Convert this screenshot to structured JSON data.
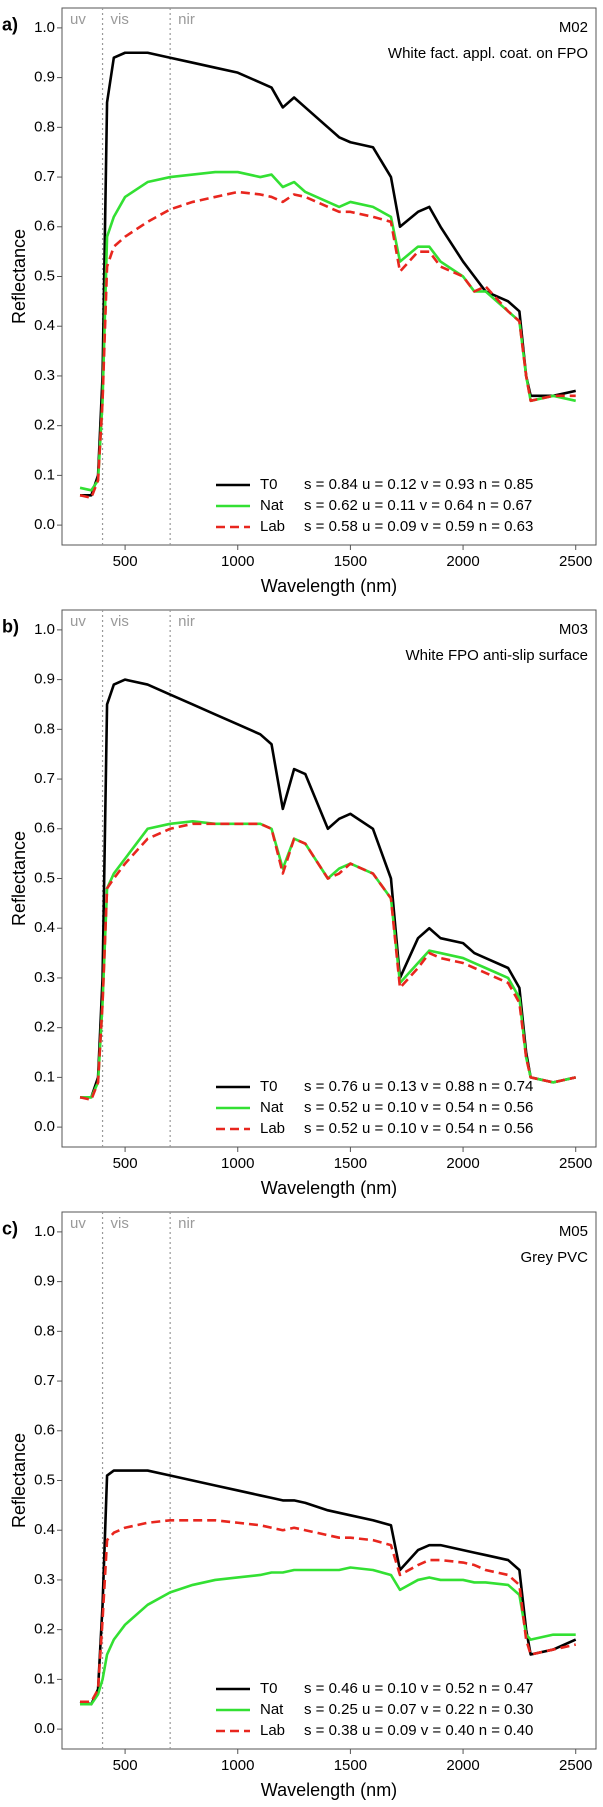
{
  "chart_data": [
    {
      "type": "line",
      "panel": "a)",
      "title": "M02",
      "subtitle": "White fact. appl. coat. on FPO",
      "xlabel": "Wavelength (nm)",
      "ylabel": "Reflectance",
      "region_labels": [
        "uv",
        "vis",
        "nir"
      ],
      "region_bounds": [
        400,
        700
      ],
      "xlim": [
        220,
        2590
      ],
      "ylim": [
        -0.04,
        1.04
      ],
      "xticks": [
        500,
        1000,
        1500,
        2000,
        2500
      ],
      "yticks": [
        {
          "value": 0,
          "label": "0.0"
        },
        0.1,
        0.2,
        0.3,
        0.4,
        0.5,
        0.6,
        0.7,
        0.8,
        0.9,
        {
          "value": 1,
          "label": "1.0"
        }
      ],
      "legend": "lower right",
      "x": [
        300,
        350,
        380,
        400,
        420,
        450,
        500,
        600,
        700,
        800,
        900,
        1000,
        1100,
        1150,
        1200,
        1250,
        1300,
        1400,
        1450,
        1500,
        1600,
        1680,
        1720,
        1800,
        1850,
        1900,
        2000,
        2050,
        2100,
        2200,
        2250,
        2280,
        2300,
        2400,
        2500
      ],
      "series": [
        {
          "name": "T0",
          "stats": "s = 0.84 u = 0.12 v = 0.93 n = 0.85",
          "color": "#000000",
          "linestyle": "solid",
          "values": [
            0.06,
            0.06,
            0.1,
            0.3,
            0.85,
            0.94,
            0.95,
            0.95,
            0.94,
            0.93,
            0.92,
            0.91,
            0.89,
            0.88,
            0.84,
            0.86,
            0.84,
            0.8,
            0.78,
            0.77,
            0.76,
            0.7,
            0.6,
            0.63,
            0.64,
            0.6,
            0.53,
            0.5,
            0.47,
            0.45,
            0.43,
            0.3,
            0.26,
            0.26,
            0.27
          ]
        },
        {
          "name": "Nat",
          "stats": "s = 0.62 u = 0.11 v = 0.64 n = 0.67",
          "color": "#33e033",
          "linestyle": "solid",
          "values": [
            0.075,
            0.07,
            0.09,
            0.25,
            0.58,
            0.62,
            0.66,
            0.69,
            0.7,
            0.705,
            0.71,
            0.71,
            0.7,
            0.705,
            0.68,
            0.69,
            0.67,
            0.65,
            0.64,
            0.65,
            0.64,
            0.62,
            0.53,
            0.56,
            0.56,
            0.53,
            0.5,
            0.47,
            0.47,
            0.43,
            0.41,
            0.3,
            0.25,
            0.26,
            0.25
          ]
        },
        {
          "name": "Lab",
          "stats": "s = 0.58 u = 0.09 v = 0.59 n = 0.63",
          "color": "#e8261e",
          "linestyle": "dashed",
          "values": [
            0.06,
            0.055,
            0.09,
            0.25,
            0.52,
            0.56,
            0.58,
            0.61,
            0.635,
            0.65,
            0.66,
            0.67,
            0.665,
            0.66,
            0.65,
            0.665,
            0.66,
            0.64,
            0.63,
            0.63,
            0.62,
            0.61,
            0.51,
            0.55,
            0.55,
            0.52,
            0.5,
            0.47,
            0.48,
            0.43,
            0.41,
            0.3,
            0.25,
            0.26,
            0.26
          ]
        }
      ]
    },
    {
      "type": "line",
      "panel": "b)",
      "title": "M03",
      "subtitle": "White FPO anti-slip surface",
      "xlabel": "Wavelength (nm)",
      "ylabel": "Reflectance",
      "region_labels": [
        "uv",
        "vis",
        "nir"
      ],
      "region_bounds": [
        400,
        700
      ],
      "xlim": [
        220,
        2590
      ],
      "ylim": [
        -0.04,
        1.04
      ],
      "xticks": [
        500,
        1000,
        1500,
        2000,
        2500
      ],
      "yticks": [
        {
          "value": 0,
          "label": "0.0"
        },
        0.1,
        0.2,
        0.3,
        0.4,
        0.5,
        0.6,
        0.7,
        0.8,
        0.9,
        {
          "value": 1,
          "label": "1.0"
        }
      ],
      "legend": "lower right",
      "x": [
        300,
        350,
        380,
        400,
        420,
        450,
        500,
        600,
        700,
        800,
        900,
        1000,
        1100,
        1150,
        1200,
        1250,
        1300,
        1400,
        1450,
        1500,
        1600,
        1680,
        1720,
        1800,
        1850,
        1900,
        2000,
        2050,
        2100,
        2200,
        2250,
        2280,
        2300,
        2400,
        2500
      ],
      "series": [
        {
          "name": "T0",
          "stats": "s = 0.76 u = 0.13 v = 0.88 n = 0.74",
          "color": "#000000",
          "linestyle": "solid",
          "values": [
            0.06,
            0.06,
            0.1,
            0.3,
            0.85,
            0.89,
            0.9,
            0.89,
            0.87,
            0.85,
            0.83,
            0.81,
            0.79,
            0.77,
            0.64,
            0.72,
            0.71,
            0.6,
            0.62,
            0.63,
            0.6,
            0.5,
            0.3,
            0.38,
            0.4,
            0.38,
            0.37,
            0.35,
            0.34,
            0.32,
            0.28,
            0.15,
            0.1,
            0.09,
            0.1
          ]
        },
        {
          "name": "Nat",
          "stats": "s = 0.52 u = 0.10 v = 0.54 n = 0.56",
          "color": "#33e033",
          "linestyle": "solid",
          "values": [
            0.06,
            0.06,
            0.09,
            0.25,
            0.48,
            0.51,
            0.54,
            0.6,
            0.61,
            0.615,
            0.61,
            0.61,
            0.61,
            0.6,
            0.52,
            0.58,
            0.57,
            0.5,
            0.52,
            0.53,
            0.51,
            0.46,
            0.29,
            0.33,
            0.355,
            0.35,
            0.34,
            0.33,
            0.32,
            0.3,
            0.26,
            0.14,
            0.1,
            0.09,
            0.1
          ]
        },
        {
          "name": "Lab",
          "stats": "s = 0.52 u = 0.10 v = 0.54 n = 0.56",
          "color": "#e8261e",
          "linestyle": "dashed",
          "values": [
            0.06,
            0.055,
            0.09,
            0.25,
            0.48,
            0.5,
            0.53,
            0.58,
            0.6,
            0.61,
            0.61,
            0.61,
            0.61,
            0.6,
            0.51,
            0.58,
            0.57,
            0.5,
            0.51,
            0.53,
            0.51,
            0.46,
            0.28,
            0.32,
            0.35,
            0.34,
            0.33,
            0.32,
            0.31,
            0.29,
            0.25,
            0.14,
            0.1,
            0.09,
            0.1
          ]
        }
      ]
    },
    {
      "type": "line",
      "panel": "c)",
      "title": "M05",
      "subtitle": "Grey PVC",
      "xlabel": "Wavelength (nm)",
      "ylabel": "Reflectance",
      "region_labels": [
        "uv",
        "vis",
        "nir"
      ],
      "region_bounds": [
        400,
        700
      ],
      "xlim": [
        220,
        2590
      ],
      "ylim": [
        -0.04,
        1.04
      ],
      "xticks": [
        500,
        1000,
        1500,
        2000,
        2500
      ],
      "yticks": [
        {
          "value": 0,
          "label": "0.0"
        },
        0.1,
        0.2,
        0.3,
        0.4,
        0.5,
        0.6,
        0.7,
        0.8,
        0.9,
        {
          "value": 1,
          "label": "1.0"
        }
      ],
      "legend": "lower right",
      "x": [
        300,
        350,
        380,
        400,
        420,
        450,
        500,
        600,
        700,
        800,
        900,
        1000,
        1100,
        1150,
        1200,
        1250,
        1300,
        1400,
        1450,
        1500,
        1600,
        1680,
        1720,
        1800,
        1850,
        1900,
        2000,
        2050,
        2100,
        2200,
        2250,
        2280,
        2300,
        2400,
        2500
      ],
      "series": [
        {
          "name": "T0",
          "stats": "s = 0.46 u = 0.10 v = 0.52 n = 0.47",
          "color": "#000000",
          "linestyle": "solid",
          "values": [
            0.055,
            0.05,
            0.08,
            0.25,
            0.51,
            0.52,
            0.52,
            0.52,
            0.51,
            0.5,
            0.49,
            0.48,
            0.47,
            0.465,
            0.46,
            0.46,
            0.455,
            0.44,
            0.435,
            0.43,
            0.42,
            0.41,
            0.32,
            0.36,
            0.37,
            0.37,
            0.36,
            0.355,
            0.35,
            0.34,
            0.32,
            0.2,
            0.15,
            0.16,
            0.18
          ]
        },
        {
          "name": "Nat",
          "stats": "s = 0.25 u = 0.07 v = 0.22 n = 0.30",
          "color": "#33e033",
          "linestyle": "solid",
          "values": [
            0.05,
            0.05,
            0.07,
            0.1,
            0.15,
            0.18,
            0.21,
            0.25,
            0.275,
            0.29,
            0.3,
            0.305,
            0.31,
            0.315,
            0.315,
            0.32,
            0.32,
            0.32,
            0.32,
            0.325,
            0.32,
            0.31,
            0.28,
            0.3,
            0.305,
            0.3,
            0.3,
            0.295,
            0.295,
            0.29,
            0.27,
            0.19,
            0.18,
            0.19,
            0.19
          ]
        },
        {
          "name": "Lab",
          "stats": "s = 0.38 u = 0.09 v = 0.40 n = 0.40",
          "color": "#e8261e",
          "linestyle": "dashed",
          "values": [
            0.055,
            0.055,
            0.08,
            0.22,
            0.38,
            0.395,
            0.405,
            0.415,
            0.42,
            0.42,
            0.42,
            0.415,
            0.41,
            0.405,
            0.4,
            0.405,
            0.4,
            0.39,
            0.385,
            0.385,
            0.38,
            0.37,
            0.31,
            0.33,
            0.34,
            0.34,
            0.335,
            0.33,
            0.32,
            0.31,
            0.29,
            0.18,
            0.15,
            0.16,
            0.17
          ]
        }
      ]
    }
  ]
}
